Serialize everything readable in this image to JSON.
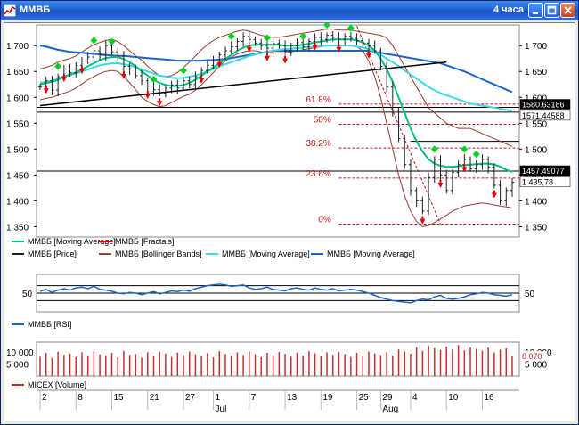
{
  "window": {
    "title": "ММВБ",
    "timeframe": "4 часа",
    "buttons": [
      "minimize",
      "maximize",
      "close"
    ]
  },
  "chart_data": [
    {
      "type": "line",
      "panel": "price",
      "y_ticks_left": [
        "1 700",
        "1 650",
        "1 600",
        "1 550",
        "1 500",
        "1 450",
        "1 400",
        "1 350"
      ],
      "y_ticks_right": [
        "1 700",
        "1 650",
        "1 600",
        "1 550",
        "1 500",
        "1 450",
        "1 400",
        "1 350"
      ],
      "ylim": [
        1330,
        1740
      ],
      "fibonacci": [
        {
          "label": "61.8%",
          "value": 1587
        },
        {
          "label": "50%",
          "value": 1548
        },
        {
          "label": "38.2%",
          "value": 1502
        },
        {
          "label": "23.6%",
          "value": 1444
        },
        {
          "label": "0%",
          "value": 1355
        }
      ],
      "price_tags": [
        "1580.63186",
        "1571.44588",
        "1457.49077",
        "1 435,78"
      ],
      "price_tag_values": [
        1580.6,
        1571.4,
        1457.5,
        1435.8
      ],
      "horizontal_lines": [
        1580.6,
        1571.4,
        1457.5,
        1515
      ],
      "close": [
        1620,
        1632,
        1614,
        1640,
        1655,
        1648,
        1662,
        1670,
        1678,
        1690,
        1682,
        1700,
        1688,
        1680,
        1660,
        1655,
        1642,
        1632,
        1622,
        1615,
        1608,
        1618,
        1624,
        1618,
        1632,
        1625,
        1640,
        1652,
        1662,
        1670,
        1682,
        1690,
        1698,
        1708,
        1718,
        1712,
        1705,
        1700,
        1695,
        1704,
        1700,
        1690,
        1700,
        1706,
        1698,
        1708,
        1716,
        1712,
        1720,
        1716,
        1712,
        1718,
        1714,
        1710,
        1705,
        1700,
        1690,
        1660,
        1620,
        1575,
        1520,
        1470,
        1420,
        1400,
        1380,
        1445,
        1480,
        1450,
        1420,
        1455,
        1470,
        1480,
        1462,
        1470,
        1480,
        1465,
        1430,
        1400,
        1420,
        1435.8
      ],
      "bollinger_upper": [
        1655,
        1658,
        1662,
        1668,
        1672,
        1675,
        1680,
        1688,
        1695,
        1702,
        1706,
        1710,
        1712,
        1708,
        1700,
        1690,
        1680,
        1672,
        1660,
        1650,
        1642,
        1640,
        1642,
        1648,
        1658,
        1668,
        1680,
        1692,
        1702,
        1710,
        1716,
        1720,
        1724,
        1728,
        1730,
        1728,
        1724,
        1720,
        1718,
        1716,
        1716,
        1718,
        1720,
        1722,
        1724,
        1726,
        1728,
        1730,
        1732,
        1732,
        1730,
        1730,
        1730,
        1728,
        1726,
        1724,
        1722,
        1720,
        1715,
        1700,
        1680,
        1660,
        1640,
        1620,
        1600,
        1580,
        1570,
        1560,
        1550,
        1545,
        1540,
        1540,
        1540,
        1535,
        1530,
        1525,
        1520,
        1515,
        1510,
        1505
      ],
      "bollinger_lower": [
        1595,
        1598,
        1600,
        1604,
        1608,
        1612,
        1618,
        1626,
        1634,
        1640,
        1646,
        1650,
        1652,
        1650,
        1640,
        1628,
        1615,
        1600,
        1592,
        1586,
        1582,
        1584,
        1590,
        1596,
        1602,
        1606,
        1614,
        1624,
        1636,
        1648,
        1660,
        1670,
        1678,
        1684,
        1688,
        1690,
        1690,
        1688,
        1686,
        1686,
        1686,
        1686,
        1688,
        1690,
        1692,
        1694,
        1696,
        1698,
        1700,
        1700,
        1700,
        1700,
        1700,
        1698,
        1690,
        1670,
        1640,
        1600,
        1550,
        1500,
        1450,
        1410,
        1380,
        1360,
        1350,
        1352,
        1358,
        1365,
        1372,
        1380,
        1385,
        1390,
        1392,
        1394,
        1396,
        1394,
        1392,
        1390,
        1388,
        1386
      ],
      "ma_green": [
        1625,
        1628,
        1630,
        1634,
        1640,
        1644,
        1648,
        1654,
        1660,
        1666,
        1672,
        1676,
        1678,
        1678,
        1674,
        1668,
        1660,
        1650,
        1642,
        1634,
        1628,
        1624,
        1622,
        1622,
        1624,
        1628,
        1634,
        1642,
        1650,
        1658,
        1666,
        1674,
        1682,
        1690,
        1696,
        1700,
        1702,
        1702,
        1702,
        1702,
        1702,
        1700,
        1700,
        1700,
        1702,
        1704,
        1706,
        1708,
        1710,
        1712,
        1712,
        1712,
        1712,
        1710,
        1706,
        1700,
        1690,
        1675,
        1655,
        1630,
        1600,
        1570,
        1540,
        1515,
        1495,
        1480,
        1472,
        1468,
        1466,
        1466,
        1467,
        1469,
        1470,
        1471,
        1472,
        1472,
        1470,
        1466,
        1460,
        1456
      ],
      "ma_cyan": [
        1628,
        1630,
        1632,
        1636,
        1640,
        1643,
        1646,
        1650,
        1654,
        1658,
        1662,
        1664,
        1666,
        1666,
        1664,
        1662,
        1658,
        1654,
        1650,
        1646,
        1642,
        1640,
        1638,
        1637,
        1638,
        1640,
        1642,
        1646,
        1650,
        1655,
        1660,
        1664,
        1668,
        1672,
        1676,
        1680,
        1683,
        1686,
        1688,
        1690,
        1692,
        1693,
        1694,
        1695,
        1696,
        1697,
        1698,
        1699,
        1700,
        1700,
        1700,
        1700,
        1700,
        1698,
        1696,
        1693,
        1688,
        1682,
        1675,
        1668,
        1660,
        1652,
        1644,
        1636,
        1628,
        1620,
        1614,
        1608,
        1604,
        1600,
        1596,
        1592,
        1588,
        1586,
        1584,
        1582,
        1580,
        1578,
        1576,
        1574
      ],
      "ma_blue": [
        1700,
        1698,
        1695,
        1692,
        1690,
        1688,
        1687,
        1686,
        1685,
        1684,
        1683,
        1682,
        1681,
        1680,
        1680,
        1679,
        1678,
        1677,
        1676,
        1675,
        1674,
        1673,
        1672,
        1671,
        1671,
        1671,
        1671,
        1671,
        1672,
        1672,
        1673,
        1674,
        1676,
        1678,
        1680,
        1682,
        1684,
        1686,
        1688,
        1690,
        1690,
        1690,
        1690,
        1690,
        1690,
        1690,
        1690,
        1690,
        1690,
        1690,
        1690,
        1690,
        1690,
        1690,
        1690,
        1690,
        1688,
        1686,
        1684,
        1682,
        1680,
        1678,
        1676,
        1674,
        1672,
        1670,
        1668,
        1666,
        1662,
        1658,
        1654,
        1650,
        1645,
        1640,
        1635,
        1630,
        1625,
        1620,
        1615,
        1610
      ],
      "support_line": [
        [
          0,
          1584
        ],
        [
          68,
          1668
        ]
      ],
      "fractals_up_idx": [
        3,
        9,
        12,
        19,
        24,
        32,
        38,
        44,
        48,
        52,
        66,
        71,
        73
      ],
      "fractals_down_idx": [
        1,
        4,
        7,
        14,
        18,
        20,
        27,
        30,
        35,
        38,
        41,
        46,
        50,
        55,
        64,
        67,
        71,
        76
      ]
    },
    {
      "type": "line",
      "panel": "rsi",
      "name": "ММВБ [RSI]",
      "level_label_left": "50",
      "level_label_right": "50",
      "ylim": [
        0,
        100
      ],
      "levels": [
        70,
        50,
        30
      ],
      "values": [
        55,
        60,
        52,
        58,
        62,
        58,
        64,
        66,
        62,
        68,
        60,
        58,
        55,
        50,
        48,
        52,
        50,
        46,
        50,
        54,
        48,
        52,
        56,
        54,
        58,
        55,
        62,
        66,
        70,
        72,
        74,
        72,
        68,
        70,
        72,
        64,
        60,
        62,
        66,
        60,
        58,
        56,
        62,
        64,
        60,
        58,
        64,
        60,
        58,
        62,
        56,
        58,
        60,
        58,
        54,
        50,
        44,
        38,
        34,
        30,
        28,
        26,
        24,
        30,
        34,
        32,
        40,
        44,
        36,
        34,
        36,
        40,
        46,
        48,
        52,
        50,
        46,
        44,
        42,
        46
      ]
    },
    {
      "type": "bar",
      "panel": "volume",
      "name": "MICEX [Volume]",
      "y_ticks_left": [
        "10 000",
        "5 000"
      ],
      "y_ticks_right": [
        "10 000",
        "5 000"
      ],
      "last_value_tag": "8 070",
      "ylim": [
        0,
        14000
      ],
      "values": [
        8000,
        9500,
        7500,
        10000,
        8800,
        9200,
        7800,
        9800,
        8200,
        10200,
        9000,
        8500,
        9600,
        7800,
        10400,
        8800,
        9100,
        7600,
        9900,
        8300,
        10000,
        9300,
        7900,
        9700,
        8600,
        10100,
        9000,
        8200,
        9400,
        7700,
        10300,
        9100,
        8400,
        9800,
        8700,
        10200,
        9000,
        7800,
        9600,
        8400,
        10000,
        9200,
        8000,
        9700,
        8500,
        10300,
        9400,
        8100,
        9800,
        8800,
        10000,
        9100,
        7900,
        9600,
        8300,
        10100,
        9300,
        8600,
        9900,
        8500,
        11000,
        10200,
        9200,
        11800,
        10400,
        12500,
        11500,
        10800,
        12200,
        11000,
        12800,
        10600,
        11900,
        11200,
        10500,
        11800,
        9800,
        10900,
        11400,
        8070
      ]
    }
  ],
  "legend_price": [
    {
      "label": "ММВБ [Moving Average]",
      "color": "#00c080"
    },
    {
      "label": "ММВБ [Fractals]",
      "color": "#e00000"
    },
    {
      "label": "ММВБ [Price]",
      "color": "#202020"
    },
    {
      "label": "ММВБ [Bollinger Bands]",
      "color": "#9a3a2a"
    },
    {
      "label": "ММВБ [Moving Average]",
      "color": "#40d8e0"
    },
    {
      "label": "ММВБ [Moving Average]",
      "color": "#1a64c8"
    }
  ],
  "date_axis": {
    "days": [
      "2",
      "8",
      "15",
      "21",
      "27",
      "1",
      "7",
      "13",
      "19",
      "25",
      "29",
      "4",
      "10",
      "16"
    ],
    "months": [
      "Jul",
      "Aug"
    ]
  },
  "colors": {
    "fractal_up": "#00d020",
    "fractal_down": "#e00000",
    "fib": "#c01818",
    "rsi": "#1a64c8",
    "volume": "#c83030"
  }
}
